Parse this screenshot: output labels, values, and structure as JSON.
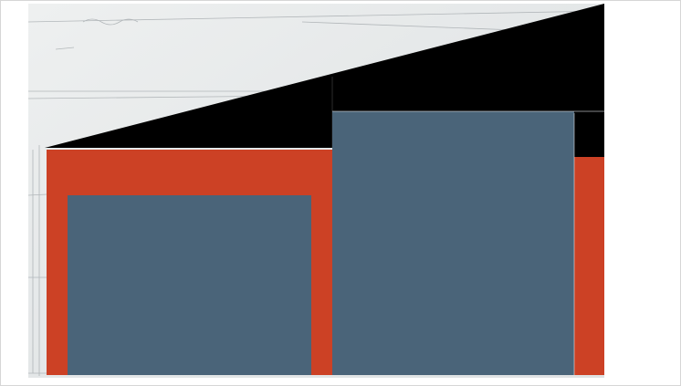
{
  "artwork": {
    "description_label": "",
    "colors": {
      "paper": "#e9ebeb",
      "roof": "#000000",
      "panel": "#4a6479",
      "frame": "#cc4125",
      "sketch_line": "#9aa0a4"
    }
  }
}
